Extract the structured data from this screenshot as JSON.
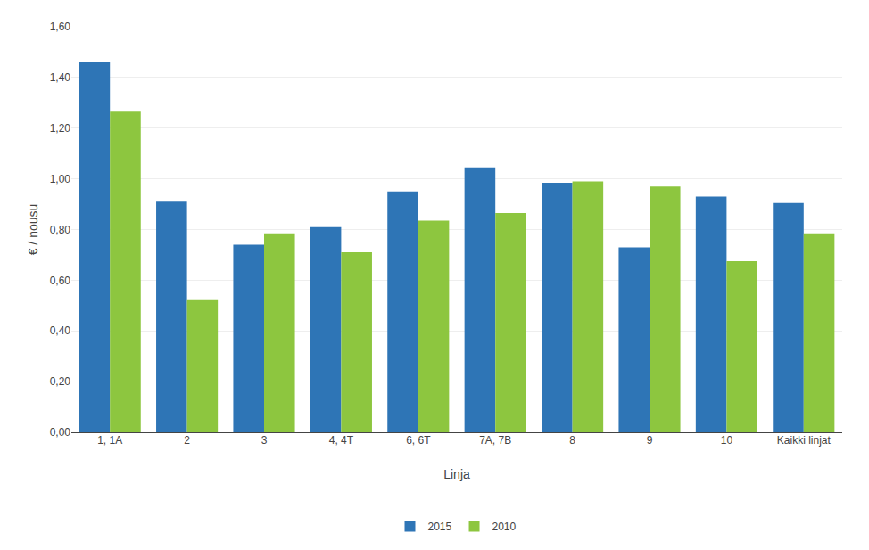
{
  "chart_data": {
    "type": "bar",
    "xlabel": "Linja",
    "ylabel": "€ / nousu",
    "categories": [
      "1, 1A",
      "2",
      "3",
      "4, 4T",
      "6, 6T",
      "7A, 7B",
      "8",
      "9",
      "10",
      "Kaikki linjat"
    ],
    "series": [
      {
        "name": "2015",
        "color": "#2E75B6",
        "values": [
          1.46,
          0.91,
          0.74,
          0.81,
          0.95,
          1.045,
          0.985,
          0.73,
          0.93,
          0.905
        ]
      },
      {
        "name": "2010",
        "color": "#8DC63F",
        "values": [
          1.265,
          0.525,
          0.785,
          0.71,
          0.835,
          0.865,
          0.99,
          0.97,
          0.675,
          0.785
        ]
      }
    ],
    "ylim": [
      0,
      1.6
    ],
    "yticks": [
      {
        "value": 0.0,
        "label": "0,00"
      },
      {
        "value": 0.2,
        "label": "0,20"
      },
      {
        "value": 0.4,
        "label": "0,40"
      },
      {
        "value": 0.6,
        "label": "0,60"
      },
      {
        "value": 0.8,
        "label": "0,80"
      },
      {
        "value": 1.0,
        "label": "1,00"
      },
      {
        "value": 1.2,
        "label": "1,20"
      },
      {
        "value": 1.4,
        "label": "1,40"
      },
      {
        "value": 1.6,
        "label": "1,60"
      }
    ],
    "grid": true,
    "legend": "bottom"
  }
}
